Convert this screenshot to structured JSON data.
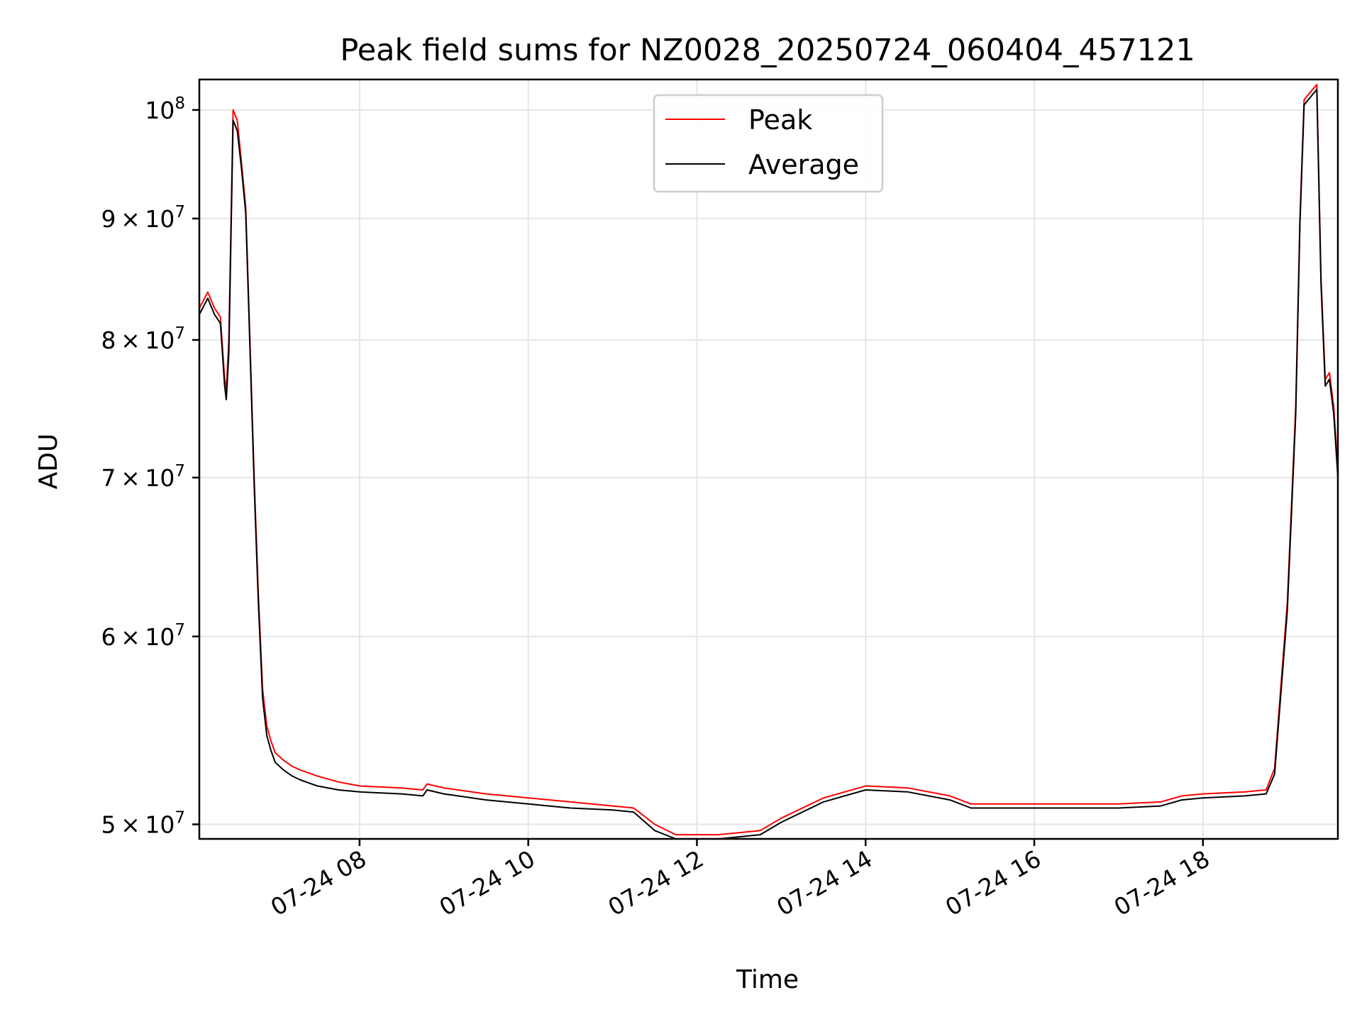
{
  "chart_data": {
    "type": "line",
    "title": "Peak field sums for NZ0028_20250724_060404_457121",
    "xlabel": "Time",
    "ylabel": "ADU",
    "x_unit": "hours on 2025-07-24",
    "xlim": [
      6.1,
      19.6
    ],
    "ylim": [
      49300000,
      103000000
    ],
    "yscale": "log",
    "grid": true,
    "legend_position": "top-center",
    "x_ticks": [
      8,
      10,
      12,
      14,
      16,
      18
    ],
    "x_tick_labels": [
      "07-24 08",
      "07-24 10",
      "07-24 12",
      "07-24 14",
      "07-24 16",
      "07-24 18"
    ],
    "y_ticks": [
      50000000,
      60000000,
      70000000,
      80000000,
      90000000,
      100000000
    ],
    "y_tick_labels": [
      {
        "mantissa": "5",
        "times": "×",
        "base": "10",
        "exp": "7"
      },
      {
        "mantissa": "6",
        "times": "×",
        "base": "10",
        "exp": "7"
      },
      {
        "mantissa": "7",
        "times": "×",
        "base": "10",
        "exp": "7"
      },
      {
        "mantissa": "8",
        "times": "×",
        "base": "10",
        "exp": "7"
      },
      {
        "mantissa": "9",
        "times": "×",
        "base": "10",
        "exp": "7"
      },
      {
        "mantissa": "",
        "times": "",
        "base": "10",
        "exp": "8"
      }
    ],
    "series": [
      {
        "name": "Peak",
        "color": "#ff0000",
        "x": [
          6.1,
          6.2,
          6.28,
          6.35,
          6.4,
          6.42,
          6.45,
          6.5,
          6.55,
          6.6,
          6.65,
          6.7,
          6.75,
          6.8,
          6.85,
          6.9,
          6.95,
          7.0,
          7.1,
          7.2,
          7.3,
          7.5,
          7.75,
          8.0,
          8.5,
          8.75,
          8.8,
          9.0,
          9.5,
          10.0,
          10.5,
          11.0,
          11.25,
          11.5,
          11.75,
          12.0,
          12.25,
          12.5,
          12.75,
          13.0,
          13.5,
          14.0,
          14.5,
          15.0,
          15.25,
          15.5,
          16.0,
          16.5,
          17.0,
          17.5,
          17.75,
          18.0,
          18.5,
          18.75,
          18.85,
          19.0,
          19.1,
          19.15,
          19.2,
          19.25,
          19.3,
          19.35,
          19.4,
          19.45,
          19.5,
          19.55,
          19.6
        ],
        "y": [
          82500000,
          83800000,
          82500000,
          81800000,
          77000000,
          76200000,
          80000000,
          100000000,
          99000000,
          95000000,
          91000000,
          80000000,
          70000000,
          62500000,
          57000000,
          55000000,
          54200000,
          53600000,
          53200000,
          52900000,
          52700000,
          52400000,
          52100000,
          51900000,
          51800000,
          51700000,
          52000000,
          51800000,
          51500000,
          51300000,
          51100000,
          50900000,
          50800000,
          50000000,
          49500000,
          49500000,
          49500000,
          49600000,
          49700000,
          50300000,
          51300000,
          51900000,
          51800000,
          51400000,
          51000000,
          51000000,
          51000000,
          51000000,
          51000000,
          51100000,
          51400000,
          51500000,
          51600000,
          51700000,
          52800000,
          62000000,
          75000000,
          90000000,
          101000000,
          101500000,
          102000000,
          102500000,
          85000000,
          77000000,
          77500000,
          75000000,
          70500000
        ]
      },
      {
        "name": "Average",
        "color": "#000000",
        "x": [
          6.1,
          6.2,
          6.28,
          6.35,
          6.4,
          6.42,
          6.45,
          6.5,
          6.55,
          6.6,
          6.65,
          6.7,
          6.75,
          6.8,
          6.85,
          6.9,
          6.95,
          7.0,
          7.1,
          7.2,
          7.3,
          7.5,
          7.75,
          8.0,
          8.5,
          8.75,
          8.8,
          9.0,
          9.5,
          10.0,
          10.5,
          11.0,
          11.25,
          11.5,
          11.75,
          12.0,
          12.25,
          12.5,
          12.75,
          13.0,
          13.5,
          14.0,
          14.5,
          15.0,
          15.25,
          15.5,
          16.0,
          16.5,
          17.0,
          17.5,
          17.75,
          18.0,
          18.5,
          18.75,
          18.85,
          19.0,
          19.1,
          19.15,
          19.2,
          19.25,
          19.3,
          19.35,
          19.4,
          19.45,
          19.5,
          19.55,
          19.6
        ],
        "y": [
          82000000,
          83300000,
          82000000,
          81300000,
          76500000,
          75500000,
          79000000,
          99000000,
          98000000,
          94500000,
          90500000,
          79500000,
          69500000,
          62000000,
          56500000,
          54500000,
          53700000,
          53100000,
          52700000,
          52400000,
          52200000,
          51900000,
          51700000,
          51600000,
          51500000,
          51400000,
          51700000,
          51500000,
          51200000,
          51000000,
          50800000,
          50700000,
          50600000,
          49700000,
          49300000,
          49300000,
          49300000,
          49400000,
          49500000,
          50100000,
          51100000,
          51700000,
          51600000,
          51200000,
          50800000,
          50800000,
          50800000,
          50800000,
          50800000,
          50900000,
          51200000,
          51300000,
          51400000,
          51500000,
          52500000,
          61500000,
          74500000,
          89500000,
          100500000,
          101000000,
          101500000,
          102000000,
          84500000,
          76500000,
          77000000,
          74500000,
          70000000
        ]
      }
    ]
  }
}
